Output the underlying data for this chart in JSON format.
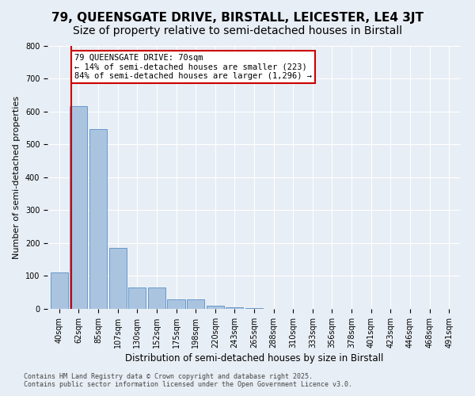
{
  "title": "79, QUEENSGATE DRIVE, BIRSTALL, LEICESTER, LE4 3JT",
  "subtitle": "Size of property relative to semi-detached houses in Birstall",
  "xlabel": "Distribution of semi-detached houses by size in Birstall",
  "ylabel": "Number of semi-detached properties",
  "footer_line1": "Contains HM Land Registry data © Crown copyright and database right 2025.",
  "footer_line2": "Contains public sector information licensed under the Open Government Licence v3.0.",
  "bin_labels": [
    "40sqm",
    "62sqm",
    "85sqm",
    "107sqm",
    "130sqm",
    "152sqm",
    "175sqm",
    "198sqm",
    "220sqm",
    "243sqm",
    "265sqm",
    "288sqm",
    "310sqm",
    "333sqm",
    "356sqm",
    "378sqm",
    "401sqm",
    "423sqm",
    "446sqm",
    "468sqm",
    "491sqm"
  ],
  "bar_values": [
    110,
    615,
    545,
    185,
    65,
    65,
    30,
    28,
    10,
    5,
    2,
    1,
    0,
    0,
    0,
    0,
    0,
    0,
    0,
    0,
    0
  ],
  "bar_color": "#aac4e0",
  "bar_edge_color": "#6699cc",
  "property_line_x": 1,
  "property_line_color": "#cc0000",
  "annotation_text": "79 QUEENSGATE DRIVE: 70sqm\n← 14% of semi-detached houses are smaller (223)\n84% of semi-detached houses are larger (1,296) →",
  "annotation_box_color": "#cc0000",
  "bg_color": "#e8eef5",
  "ylim": [
    0,
    800
  ],
  "yticks": [
    0,
    100,
    200,
    300,
    400,
    500,
    600,
    700,
    800
  ],
  "grid_color": "#ffffff",
  "title_fontsize": 11,
  "subtitle_fontsize": 10,
  "axis_fontsize": 8,
  "tick_fontsize": 7,
  "annotation_fontsize": 7.5
}
